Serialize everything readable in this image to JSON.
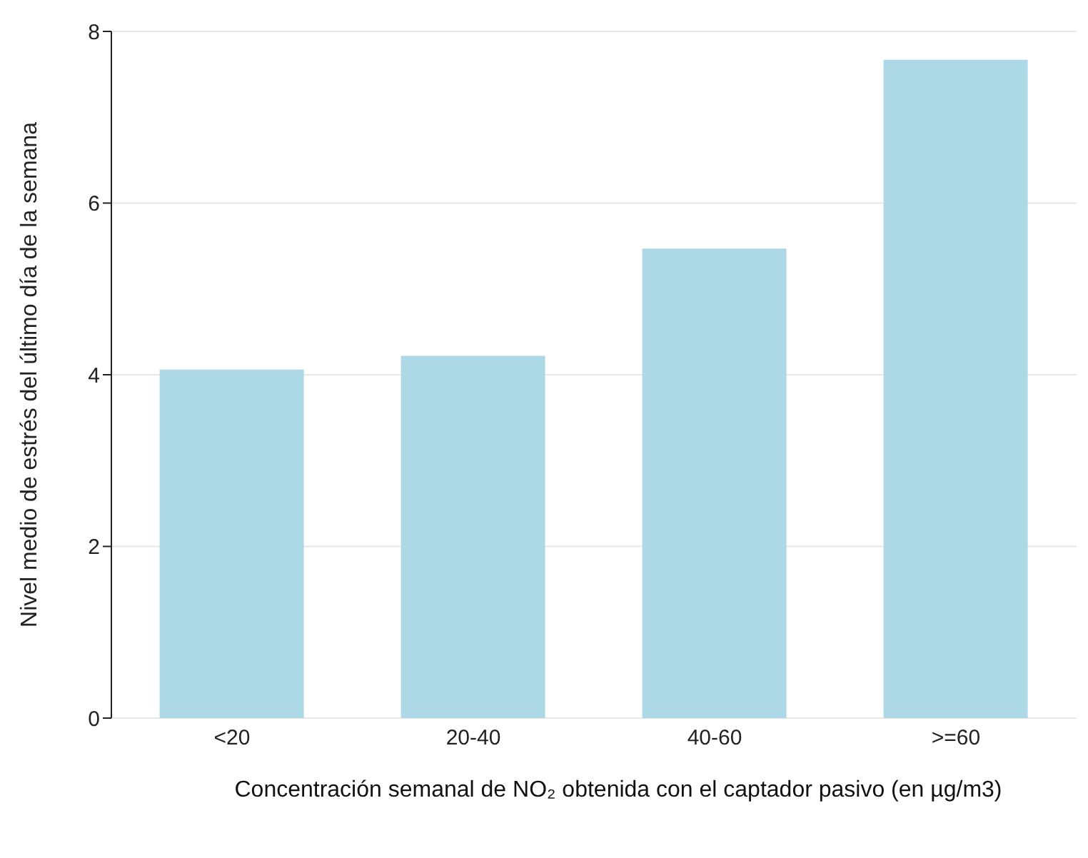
{
  "chart_data": {
    "type": "bar",
    "xlabel": "Concentración semanal de NO₂ obtenida con el captador pasivo (en µg/m3)",
    "ylabel": "Nivel medio de estrés del último día de la semana",
    "categories": [
      "<20",
      "20-40",
      "40-60",
      ">=60"
    ],
    "values": [
      4.06,
      4.22,
      5.47,
      7.67
    ],
    "color": "#add8e6",
    "ylim": [
      0,
      8
    ],
    "yticks": [
      0,
      2,
      4,
      6,
      8
    ],
    "grid": "y"
  }
}
